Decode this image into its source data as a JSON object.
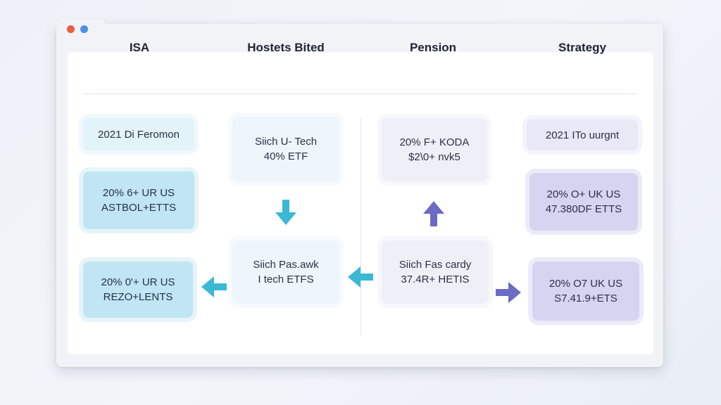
{
  "window": {
    "controls": [
      "close",
      "minimize"
    ]
  },
  "columns": [
    {
      "title": "ISA"
    },
    {
      "title": "Hostets Bited"
    },
    {
      "title": "Pension"
    },
    {
      "title": "Strategy"
    }
  ],
  "cards": {
    "isa_top": {
      "line1": "2021 Di Feromon"
    },
    "isa_mid": {
      "line1": "20% 6+ UR US",
      "line2": "ASTBOL+ETTS"
    },
    "isa_bot": {
      "line1": "20% 0'+ UR US",
      "line2": "REZO+LENTS"
    },
    "hb_top": {
      "line1": "Siich U- Tech",
      "line2": "40% ETF"
    },
    "hb_bot": {
      "line1": "Siich Pas.awk",
      "line2": "I tech ETFS"
    },
    "pen_top": {
      "line1": "20% F+ KODA",
      "line2": "$2\\0+ nvk5"
    },
    "pen_bot": {
      "line1": "Siich Fas cardy",
      "line2": "37.4R+ HETIS"
    },
    "str_top": {
      "line1": "2021 ITo uurgnt"
    },
    "str_mid": {
      "line1": "20% O+ UK US",
      "line2": "47.380DF ETTS"
    },
    "str_bot": {
      "line1": "20% O7 UK US",
      "line2": "S7.41.9+ETS"
    }
  },
  "arrows": [
    {
      "name": "hb-down-arrow",
      "direction": "down",
      "color": "#3bb8d6"
    },
    {
      "name": "isa-left-arrow",
      "direction": "left",
      "color": "#3bb8d6"
    },
    {
      "name": "pension-left-arrow",
      "direction": "left",
      "color": "#3bb8d6"
    },
    {
      "name": "pension-up-arrow",
      "direction": "up",
      "color": "#6b6ac4"
    },
    {
      "name": "strategy-right-arrow",
      "direction": "right",
      "color": "#6b6ac4"
    }
  ]
}
